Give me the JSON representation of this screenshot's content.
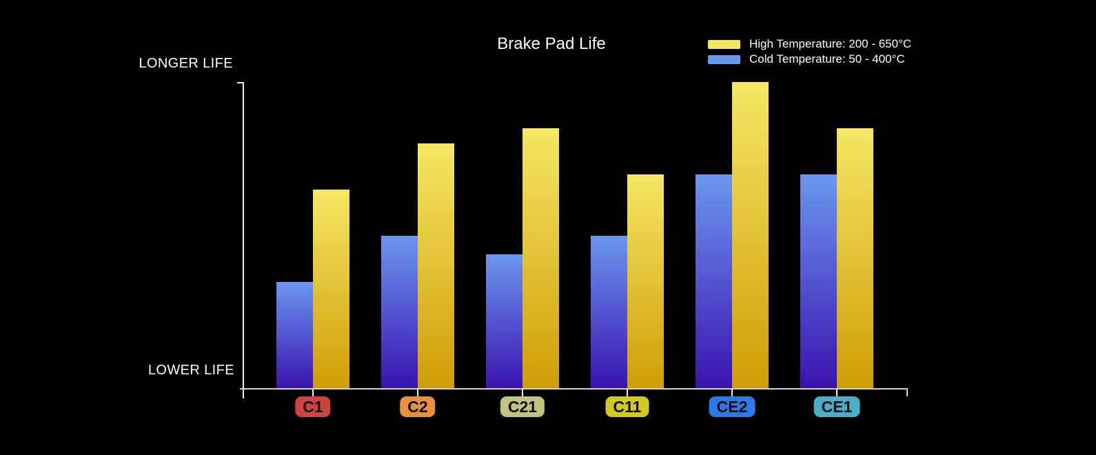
{
  "window": {
    "background": "#000000",
    "text_color": "#ffffff"
  },
  "chart_data": {
    "type": "bar",
    "title": "Brake Pad Life",
    "categories": [
      "C1",
      "C2",
      "C21",
      "C11",
      "CE2",
      "CE1"
    ],
    "category_badge_colors": [
      "#cc4341",
      "#e8913c",
      "#c2c380",
      "#d3ca1f",
      "#2e79e8",
      "#4aaec6"
    ],
    "category_badge_text_color": "#0d0d0d",
    "series": [
      {
        "name": "High Temperature: 200 - 650°C",
        "position_in_group": "right",
        "values": [
          65,
          80,
          85,
          70,
          100,
          85
        ],
        "bar_gradient_top": "#f6e765",
        "bar_gradient_bottom": "#cf9d06",
        "legend_swatch_color": "#f3e664"
      },
      {
        "name": "Cold Temperature: 50 - 400°C",
        "position_in_group": "left",
        "values": [
          35,
          50,
          44,
          50,
          70,
          70
        ],
        "bar_gradient_top": "#6b97ef",
        "bar_gradient_bottom": "#3a11af",
        "legend_swatch_color": "#659af0"
      }
    ],
    "y_axis": {
      "top_label": "LONGER LIFE",
      "bottom_label": "LOWER LIFE",
      "numeric_ticks": false
    },
    "x_axis": {
      "tick_per_category": true
    },
    "value_scale": {
      "unit": "relative",
      "range": [
        0,
        100
      ]
    },
    "legend_position": "top-right",
    "grid": false,
    "axis_colors": {
      "x_axis": "#d6d2cb",
      "y_axis": "#f2f2f2",
      "tick": "#ededed"
    }
  }
}
